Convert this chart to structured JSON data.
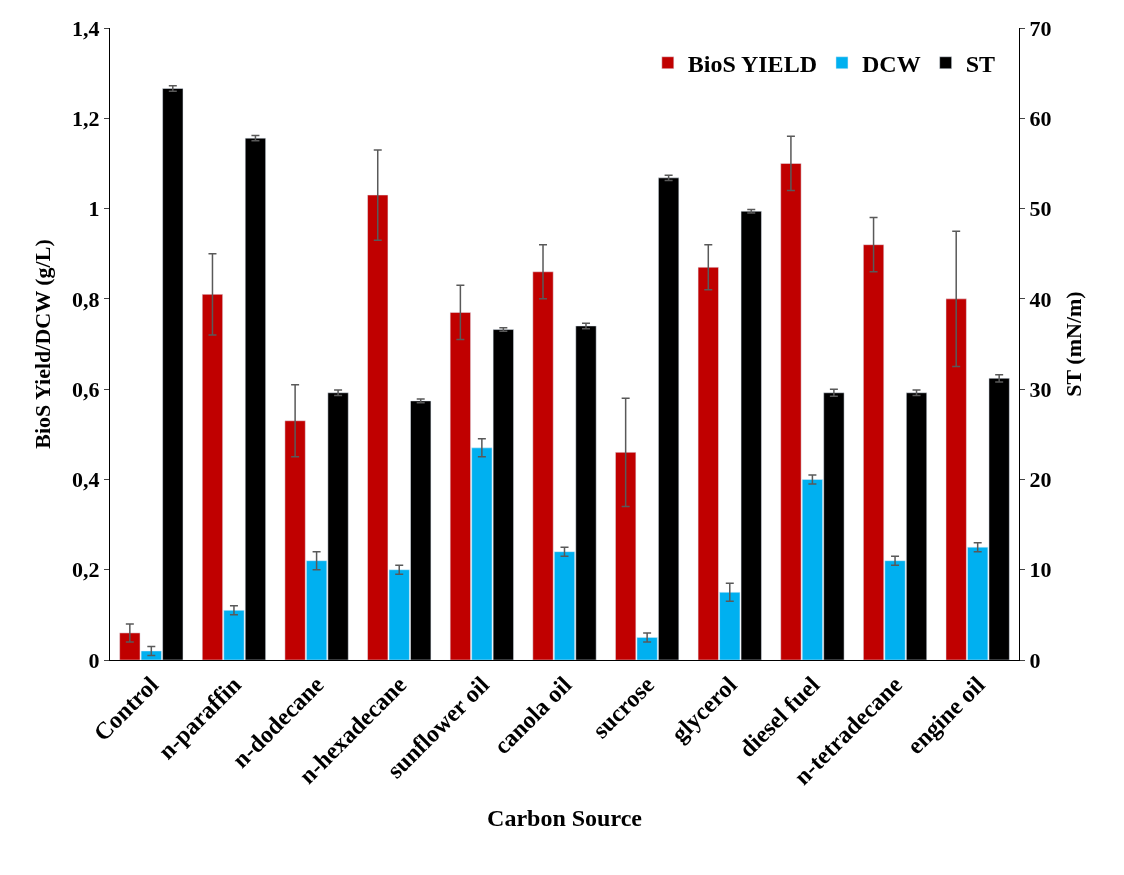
{
  "chart_data": {
    "type": "bar",
    "categories": [
      "Control",
      "n-paraffin",
      "n-dodecane",
      "n-hexadecane",
      "sunflower oil",
      "canola oil",
      "sucrose",
      "glycerol",
      "diesel fuel",
      "n-tetradecane",
      "engine oil"
    ],
    "series": [
      {
        "name": "BioS YIELD",
        "color": "#c00000",
        "values": [
          0.06,
          0.81,
          0.53,
          1.03,
          0.77,
          0.86,
          0.46,
          0.87,
          1.1,
          0.92,
          0.8
        ],
        "errors": [
          0.02,
          0.09,
          0.08,
          0.1,
          0.06,
          0.06,
          0.12,
          0.05,
          0.06,
          0.06,
          0.15
        ]
      },
      {
        "name": "DCW",
        "color": "#00b0f0",
        "values": [
          0.02,
          0.11,
          0.22,
          0.2,
          0.47,
          0.24,
          0.05,
          0.15,
          0.4,
          0.22,
          0.25
        ],
        "errors": [
          0.01,
          0.01,
          0.02,
          0.01,
          0.02,
          0.01,
          0.01,
          0.02,
          0.01,
          0.01,
          0.01
        ]
      },
      {
        "name": "ST",
        "color": "#000000",
        "axis": "y2",
        "values": [
          63.3,
          57.8,
          29.6,
          28.7,
          36.6,
          37.0,
          53.4,
          49.7,
          29.6,
          29.6,
          31.2
        ],
        "errors": [
          0.3,
          0.3,
          0.3,
          0.2,
          0.2,
          0.3,
          0.3,
          0.2,
          0.4,
          0.3,
          0.4
        ]
      }
    ],
    "xlabel": "Carbon Source",
    "ylabel": "BioS Yield/DCW (g/L)",
    "y2label": "ST (mN/m)",
    "ylim": [
      0,
      1.4
    ],
    "yticks": [
      0,
      {
        "value": 0.2,
        "label": "0,2"
      },
      {
        "value": 0.4,
        "label": "0,4"
      },
      {
        "value": 0.6,
        "label": "0,6"
      },
      {
        "value": 0.8,
        "label": "0,8"
      },
      1,
      {
        "value": 1.2,
        "label": "1,2"
      },
      {
        "value": 1.4,
        "label": "1,4"
      }
    ],
    "y2lim": [
      0,
      70
    ],
    "y2ticks": [
      0,
      10,
      20,
      30,
      40,
      50,
      60,
      70
    ],
    "legend": "top right"
  }
}
